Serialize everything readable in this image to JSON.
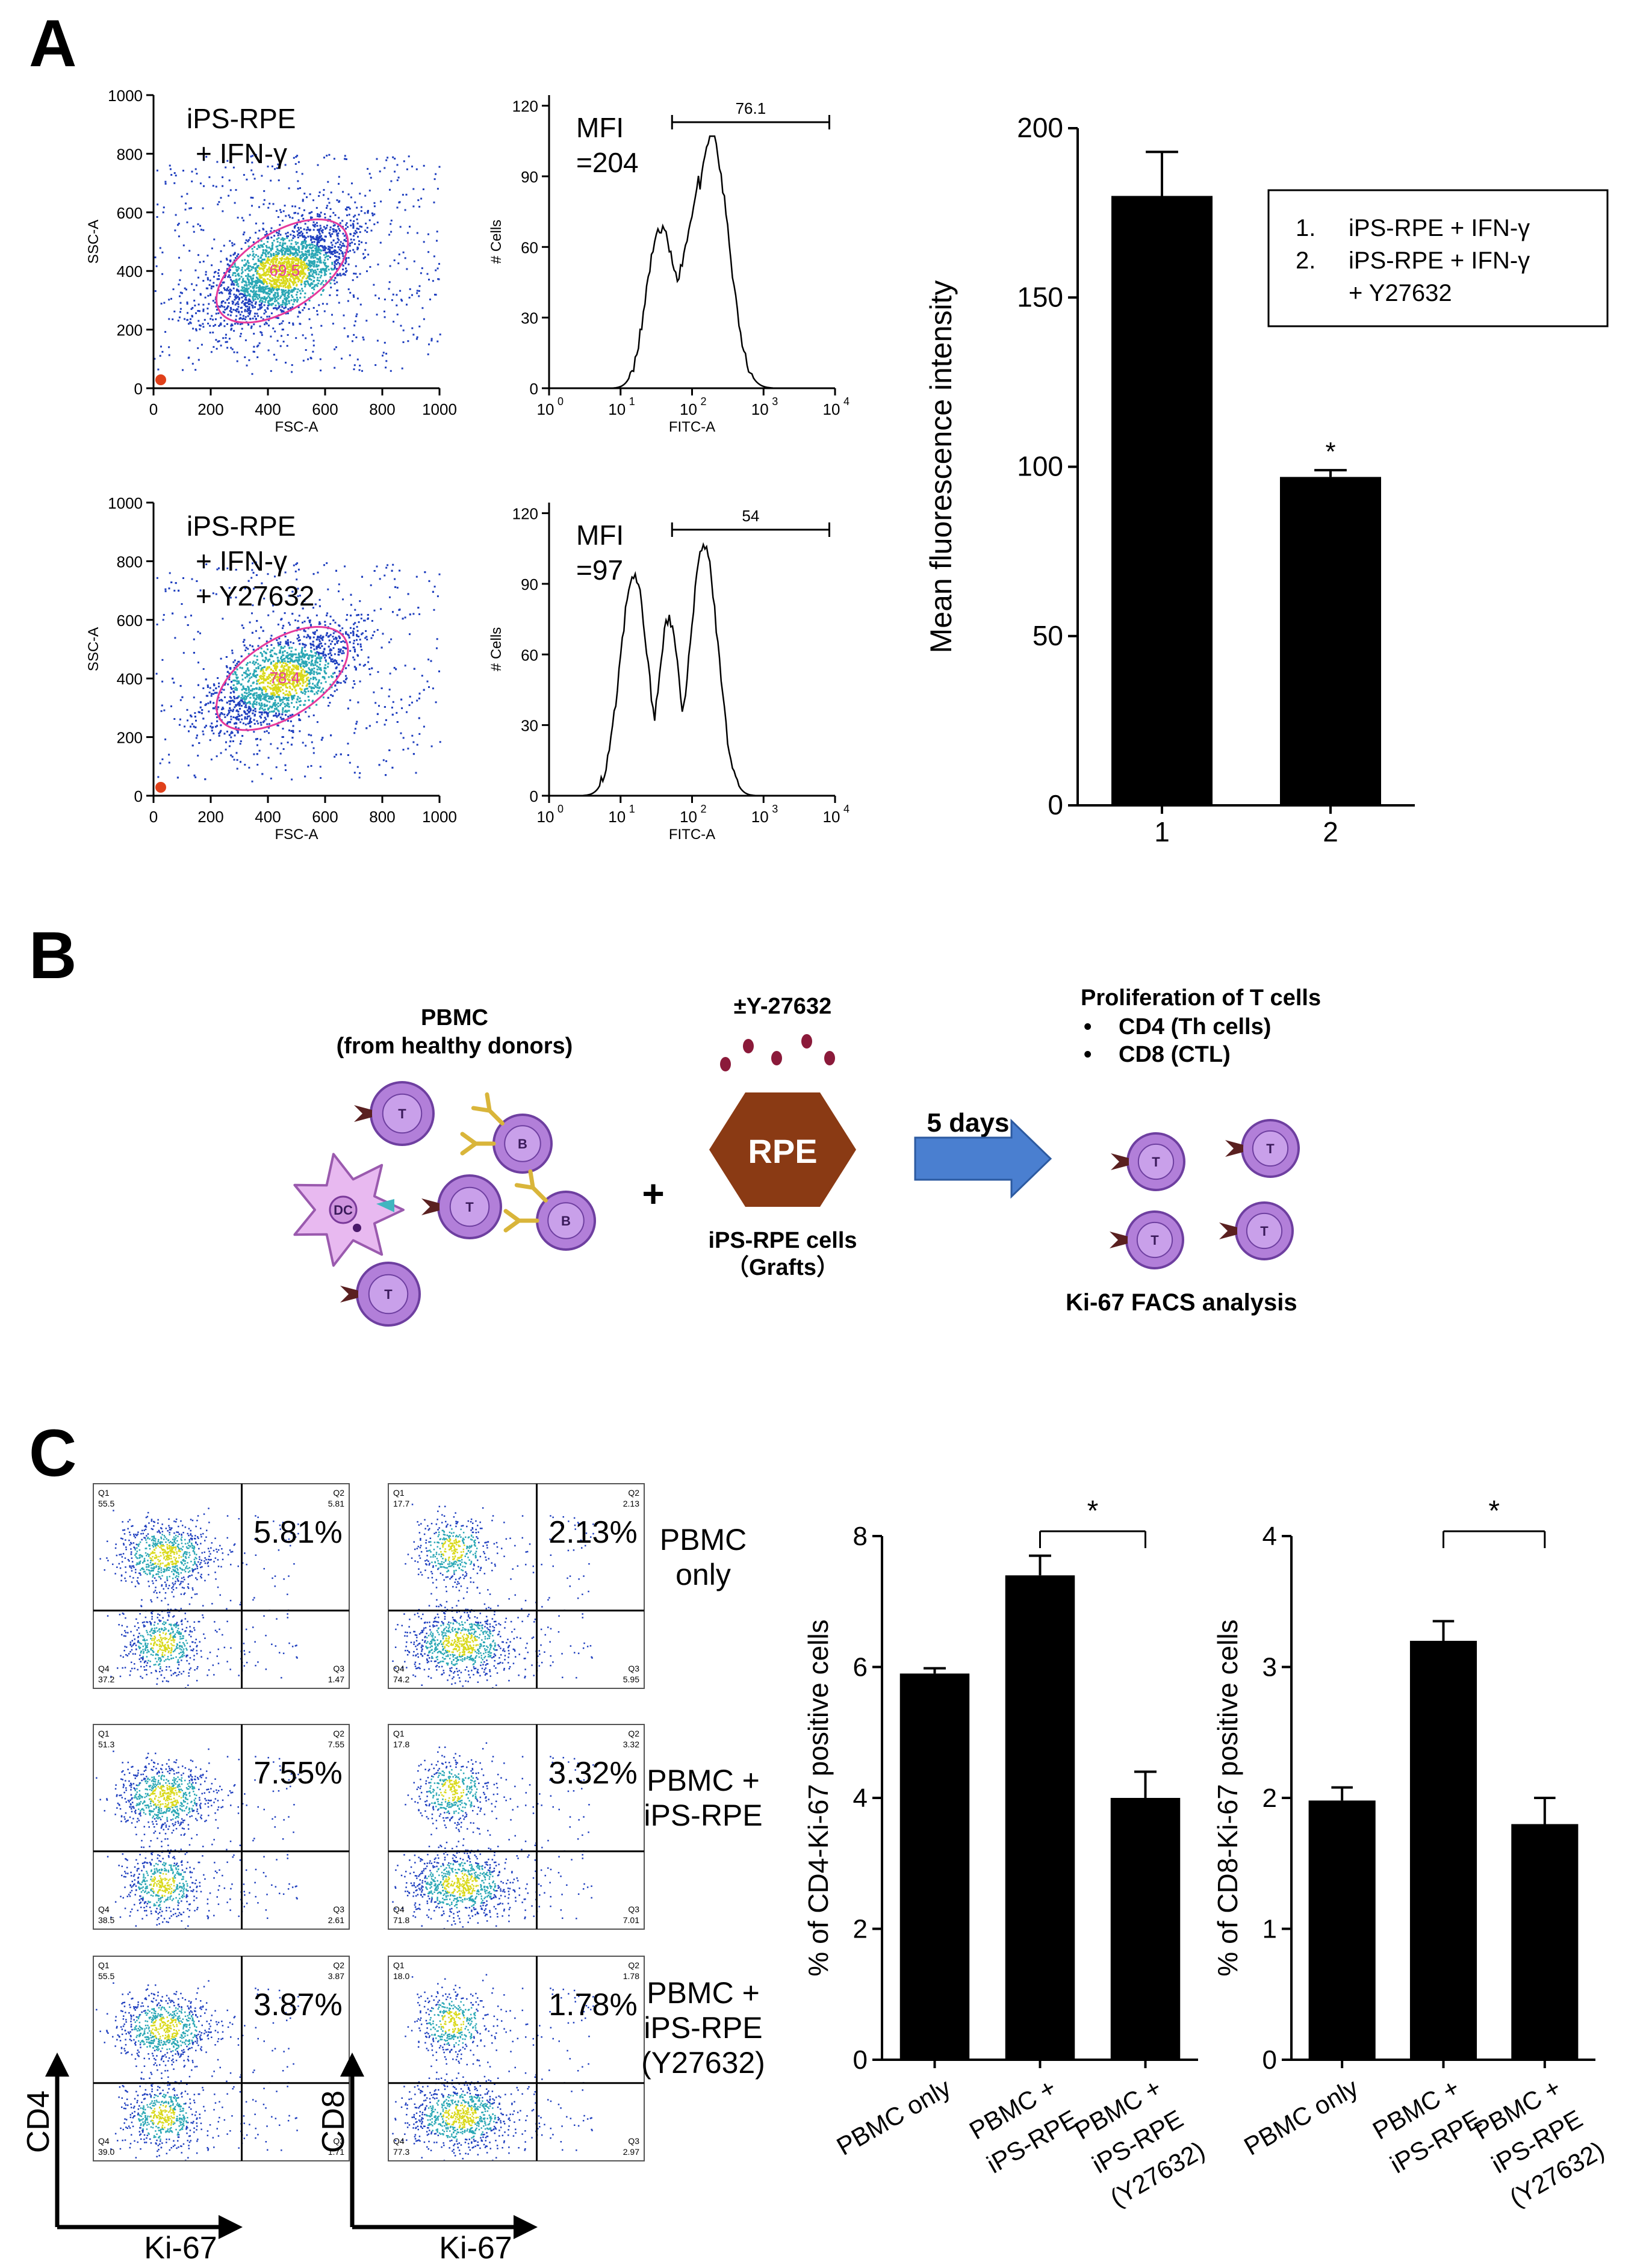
{
  "panel_labels": {
    "a": "A",
    "b": "B",
    "c": "C"
  },
  "colors": {
    "bar": "#000000",
    "gate": "#e6399b",
    "dot_low": "#1f3fbf",
    "dot_mid": "#2aa7b5",
    "dot_high": "#d9d91a",
    "tcell_fill": "#b27fd9",
    "tcell_stroke": "#6e3fa0",
    "rpe_fill": "#8a3a14",
    "arrow_fill": "#4a7fd0",
    "antibody": "#d9b53a",
    "dc_fill": "#e8b9f0",
    "receptor": "#5a2020",
    "dots_red": "#8b1a3a"
  },
  "panel_a": {
    "scatter_axes": {
      "x_label": "FSC-A",
      "y_label": "SSC-A",
      "x_ticks": [
        "0",
        "200",
        "400",
        "600",
        "800",
        "1000"
      ],
      "y_ticks": [
        "0",
        "200",
        "400",
        "600",
        "800",
        "1000"
      ]
    },
    "hist_axes": {
      "x_label": "FITC-A",
      "y_label": "# Cells",
      "x_ticks": [
        "10",
        "10",
        "10",
        "10",
        "10"
      ],
      "x_exps": [
        "0",
        "1",
        "2",
        "3",
        "4"
      ],
      "y_ticks": [
        "0",
        "30",
        "60",
        "90",
        "120"
      ]
    },
    "rows": [
      {
        "condition_lines": [
          "iPS-RPE",
          "+ IFN-γ"
        ],
        "gate_percent": "69.5",
        "mfi_lines": [
          "MFI",
          "=204"
        ],
        "marker_value": "76.1"
      },
      {
        "condition_lines": [
          "iPS-RPE",
          "+ IFN-γ",
          "+ Y27632"
        ],
        "gate_percent": "78.4",
        "mfi_lines": [
          "MFI",
          "=97"
        ],
        "marker_value": "54"
      }
    ],
    "legend_items": [
      {
        "num": "1.",
        "lines": [
          "iPS-RPE + IFN-γ"
        ]
      },
      {
        "num": "2.",
        "lines": [
          "iPS-RPE + IFN-γ",
          "+ Y27632"
        ]
      }
    ],
    "significance": "*"
  },
  "panel_b": {
    "pbmc_title": [
      "PBMC",
      "(from healthy donors)"
    ],
    "cell_labels": {
      "t": "T",
      "b": "B",
      "dc": "DC"
    },
    "plus_sign": "+",
    "drug_label": "±Y-27632",
    "rpe_label": "RPE",
    "rpe_caption": [
      "iPS-RPE cells",
      "（Grafts）"
    ],
    "duration": "5 days",
    "result_title": "Proliferation of T cells",
    "result_bullets": [
      "CD4 (Th cells)",
      "CD8 (CTL)"
    ],
    "bullet_char": "•",
    "analysis": "Ki-67 FACS analysis"
  },
  "panel_c": {
    "flow_plots": [
      {
        "big_percent": "5.81%",
        "q1": [
          "Q1",
          "55.5"
        ],
        "q2": [
          "Q2",
          "5.81"
        ],
        "q3": [
          "Q3",
          "1.47"
        ],
        "q4": [
          "Q4",
          "37.2"
        ]
      },
      {
        "big_percent": "2.13%",
        "q1": [
          "Q1",
          "17.7"
        ],
        "q2": [
          "Q2",
          "2.13"
        ],
        "q3": [
          "Q3",
          "5.95"
        ],
        "q4": [
          "Q4",
          "74.2"
        ]
      },
      {
        "big_percent": "7.55%",
        "q1": [
          "Q1",
          "51.3"
        ],
        "q2": [
          "Q2",
          "7.55"
        ],
        "q3": [
          "Q3",
          "2.61"
        ],
        "q4": [
          "Q4",
          "38.5"
        ]
      },
      {
        "big_percent": "3.32%",
        "q1": [
          "Q1",
          "17.8"
        ],
        "q2": [
          "Q2",
          "3.32"
        ],
        "q3": [
          "Q3",
          "7.01"
        ],
        "q4": [
          "Q4",
          "71.8"
        ]
      },
      {
        "big_percent": "3.87%",
        "q1": [
          "Q1",
          "55.5"
        ],
        "q2": [
          "Q2",
          "3.87"
        ],
        "q3": [
          "Q3",
          "1.71"
        ],
        "q4": [
          "Q4",
          "39.0"
        ]
      },
      {
        "big_percent": "1.78%",
        "q1": [
          "Q1",
          "18.0"
        ],
        "q2": [
          "Q2",
          "1.78"
        ],
        "q3": [
          "Q3",
          "2.97"
        ],
        "q4": [
          "Q4",
          "77.3"
        ]
      }
    ],
    "row_labels": [
      [
        "PBMC",
        "only"
      ],
      [
        "PBMC +",
        "iPS-RPE"
      ],
      [
        "PBMC +",
        "iPS-RPE",
        "(Y27632)"
      ]
    ],
    "axis_labels": {
      "cd4": "CD4",
      "cd8": "CD8",
      "ki67": "Ki-67"
    },
    "significance": "*"
  },
  "chart_data": [
    {
      "type": "bar",
      "title": "",
      "categories": [
        "1",
        "2"
      ],
      "values": [
        180,
        97
      ],
      "errors": [
        13,
        2
      ],
      "significance": [
        "",
        "*"
      ],
      "xlabel": "",
      "ylabel": "Mean fluorescence intensity",
      "ylim": [
        0,
        200
      ],
      "yticks": [
        "0",
        "50",
        "100",
        "150",
        "200"
      ]
    },
    {
      "type": "bar",
      "title": "",
      "categories": [
        [
          "PBMC only"
        ],
        [
          "PBMC +",
          "iPS-RPE"
        ],
        [
          "PBMC +",
          "iPS-RPE",
          "(Y27632)"
        ]
      ],
      "values": [
        5.9,
        7.4,
        4.0
      ],
      "errors": [
        0.08,
        0.3,
        0.4
      ],
      "xlabel": "",
      "ylabel": "% of CD4-Ki-67 positive cells",
      "ylim": [
        0,
        8
      ],
      "yticks": [
        "0",
        "2",
        "4",
        "6",
        "8"
      ],
      "bracket": {
        "from": 1,
        "to": 2,
        "label": "*"
      }
    },
    {
      "type": "bar",
      "title": "",
      "categories": [
        [
          "PBMC only"
        ],
        [
          "PBMC +",
          "iPS-RPE"
        ],
        [
          "PBMC +",
          "iPS-RPE",
          "(Y27632)"
        ]
      ],
      "values": [
        1.98,
        3.2,
        1.8
      ],
      "errors": [
        0.1,
        0.15,
        0.2
      ],
      "xlabel": "",
      "ylabel": "% of CD8-Ki-67 positive cells",
      "ylim": [
        0,
        4
      ],
      "yticks": [
        "0",
        "1",
        "2",
        "3",
        "4"
      ],
      "bracket": {
        "from": 1,
        "to": 2,
        "label": "*"
      }
    }
  ]
}
